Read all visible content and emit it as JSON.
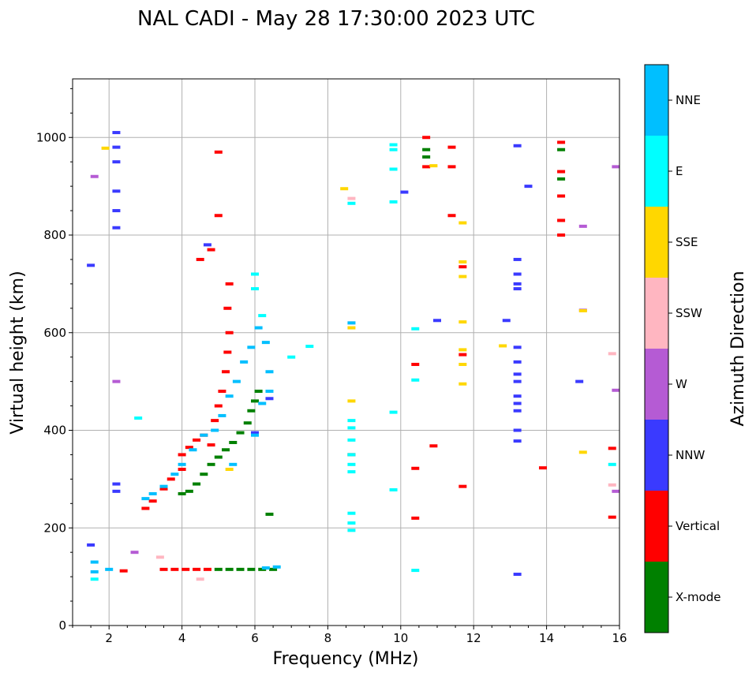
{
  "chart_data": {
    "type": "scatter",
    "title": "NAL CADI - May 28 17:30:00 2023 UTC",
    "xlabel": "Frequency (MHz)",
    "ylabel": "Virtual height (km)",
    "xlim": [
      1,
      16
    ],
    "ylim": [
      0,
      1120
    ],
    "x_ticks": [
      2,
      4,
      6,
      8,
      10,
      12,
      14,
      16
    ],
    "y_ticks": [
      0,
      200,
      400,
      600,
      800,
      1000
    ],
    "x_tick_labels": [
      "2",
      "4",
      "6",
      "8",
      "10",
      "12",
      "14",
      "16"
    ],
    "y_tick_labels": [
      "0",
      "200",
      "400",
      "600",
      "800",
      "1000"
    ],
    "grid": true,
    "colorbar": {
      "title": "Azimuth Direction",
      "classes": [
        {
          "label": "X-mode",
          "color": "#008000"
        },
        {
          "label": "Vertical",
          "color": "#ff0000"
        },
        {
          "label": "NNW",
          "color": "#3a3aff"
        },
        {
          "label": "W",
          "color": "#b55bd4"
        },
        {
          "label": "SSW",
          "color": "#ffb6c1"
        },
        {
          "label": "SSE",
          "color": "#ffd700"
        },
        {
          "label": "E",
          "color": "#00ffff"
        },
        {
          "label": "NNE",
          "color": "#00bfff"
        }
      ]
    },
    "series": [
      {
        "name": "X-mode",
        "points": [
          [
            4.0,
            270
          ],
          [
            4.2,
            275
          ],
          [
            4.4,
            290
          ],
          [
            4.6,
            310
          ],
          [
            4.8,
            330
          ],
          [
            5.0,
            345
          ],
          [
            5.2,
            360
          ],
          [
            5.4,
            375
          ],
          [
            5.6,
            395
          ],
          [
            5.8,
            415
          ],
          [
            5.9,
            440
          ],
          [
            6.0,
            460
          ],
          [
            6.1,
            480
          ],
          [
            5.0,
            115
          ],
          [
            5.3,
            115
          ],
          [
            5.6,
            115
          ],
          [
            5.9,
            115
          ],
          [
            6.2,
            115
          ],
          [
            6.5,
            115
          ],
          [
            10.7,
            960
          ],
          [
            10.7,
            975
          ],
          [
            14.4,
            975
          ],
          [
            14.4,
            915
          ],
          [
            8.65,
            350
          ],
          [
            6.4,
            228
          ]
        ]
      },
      {
        "name": "Vertical",
        "points": [
          [
            3.0,
            240
          ],
          [
            3.2,
            255
          ],
          [
            3.5,
            280
          ],
          [
            3.7,
            300
          ],
          [
            4.0,
            320
          ],
          [
            4.0,
            350
          ],
          [
            4.2,
            365
          ],
          [
            4.4,
            380
          ],
          [
            4.6,
            390
          ],
          [
            4.8,
            370
          ],
          [
            4.9,
            420
          ],
          [
            5.0,
            450
          ],
          [
            5.1,
            480
          ],
          [
            5.2,
            520
          ],
          [
            5.25,
            560
          ],
          [
            5.3,
            600
          ],
          [
            5.25,
            650
          ],
          [
            5.3,
            700
          ],
          [
            4.8,
            770
          ],
          [
            4.5,
            750
          ],
          [
            5.0,
            840
          ],
          [
            3.5,
            115
          ],
          [
            3.8,
            115
          ],
          [
            4.1,
            115
          ],
          [
            4.4,
            115
          ],
          [
            4.7,
            115
          ],
          [
            2.4,
            112
          ],
          [
            10.7,
            1000
          ],
          [
            10.7,
            940
          ],
          [
            11.4,
            980
          ],
          [
            11.4,
            940
          ],
          [
            11.4,
            840
          ],
          [
            14.4,
            990
          ],
          [
            14.4,
            930
          ],
          [
            14.4,
            880
          ],
          [
            14.4,
            830
          ],
          [
            14.4,
            800
          ],
          [
            10.4,
            535
          ],
          [
            10.4,
            322
          ],
          [
            10.4,
            220
          ],
          [
            10.9,
            368
          ],
          [
            11.7,
            735
          ],
          [
            11.7,
            555
          ],
          [
            11.7,
            285
          ],
          [
            13.9,
            323
          ],
          [
            15.8,
            363
          ],
          [
            15.8,
            222
          ],
          [
            8.65,
            350
          ],
          [
            5.0,
            970
          ]
        ]
      },
      {
        "name": "NNW",
        "points": [
          [
            2.2,
            1010
          ],
          [
            2.2,
            980
          ],
          [
            2.2,
            950
          ],
          [
            2.2,
            890
          ],
          [
            2.2,
            850
          ],
          [
            2.2,
            815
          ],
          [
            2.2,
            290
          ],
          [
            2.2,
            275
          ],
          [
            4.7,
            780
          ],
          [
            10.1,
            888
          ],
          [
            11.0,
            625
          ],
          [
            13.2,
            983
          ],
          [
            13.2,
            750
          ],
          [
            13.2,
            720
          ],
          [
            13.2,
            700
          ],
          [
            13.2,
            690
          ],
          [
            13.2,
            570
          ],
          [
            13.2,
            540
          ],
          [
            13.2,
            515
          ],
          [
            13.2,
            500
          ],
          [
            13.2,
            470
          ],
          [
            13.2,
            455
          ],
          [
            13.2,
            440
          ],
          [
            13.2,
            400
          ],
          [
            13.2,
            378
          ],
          [
            13.2,
            105
          ],
          [
            13.5,
            900
          ],
          [
            12.9,
            625
          ],
          [
            14.9,
            500
          ],
          [
            1.5,
            738
          ],
          [
            1.5,
            165
          ],
          [
            6.0,
            395
          ],
          [
            6.4,
            465
          ]
        ]
      },
      {
        "name": "W",
        "points": [
          [
            1.6,
            920
          ],
          [
            2.2,
            500
          ],
          [
            15.9,
            940
          ],
          [
            15.9,
            482
          ],
          [
            15.9,
            275
          ],
          [
            15.0,
            818
          ],
          [
            15.0,
            646
          ],
          [
            2.7,
            150
          ]
        ]
      },
      {
        "name": "SSW",
        "points": [
          [
            8.65,
            875
          ],
          [
            8.65,
            620
          ],
          [
            15.8,
            288
          ],
          [
            15.8,
            557
          ],
          [
            4.5,
            95
          ],
          [
            3.4,
            140
          ]
        ]
      },
      {
        "name": "SSE",
        "points": [
          [
            8.45,
            895
          ],
          [
            8.65,
            610
          ],
          [
            8.65,
            460
          ],
          [
            10.9,
            942
          ],
          [
            11.7,
            825
          ],
          [
            11.7,
            745
          ],
          [
            11.7,
            715
          ],
          [
            11.7,
            622
          ],
          [
            11.7,
            565
          ],
          [
            11.7,
            535
          ],
          [
            11.7,
            495
          ],
          [
            12.8,
            573
          ],
          [
            15.0,
            355
          ],
          [
            15.0,
            645
          ],
          [
            1.9,
            978
          ],
          [
            5.3,
            320
          ]
        ]
      },
      {
        "name": "E",
        "points": [
          [
            8.65,
            420
          ],
          [
            8.65,
            405
          ],
          [
            8.65,
            380
          ],
          [
            8.65,
            350
          ],
          [
            8.65,
            330
          ],
          [
            8.65,
            315
          ],
          [
            8.65,
            230
          ],
          [
            8.65,
            210
          ],
          [
            8.65,
            195
          ],
          [
            8.65,
            865
          ],
          [
            9.8,
            985
          ],
          [
            9.8,
            975
          ],
          [
            9.8,
            935
          ],
          [
            9.8,
            868
          ],
          [
            9.8,
            437
          ],
          [
            9.8,
            278
          ],
          [
            10.4,
            608
          ],
          [
            10.4,
            503
          ],
          [
            10.4,
            113
          ],
          [
            7.5,
            572
          ],
          [
            7.0,
            550
          ],
          [
            6.0,
            720
          ],
          [
            6.0,
            690
          ],
          [
            6.2,
            635
          ],
          [
            1.6,
            95
          ],
          [
            15.8,
            330
          ],
          [
            2.8,
            425
          ]
        ]
      },
      {
        "name": "NNE",
        "points": [
          [
            1.6,
            130
          ],
          [
            1.6,
            110
          ],
          [
            2.0,
            115
          ],
          [
            3.0,
            260
          ],
          [
            3.2,
            270
          ],
          [
            3.5,
            285
          ],
          [
            3.8,
            310
          ],
          [
            4.0,
            330
          ],
          [
            4.3,
            360
          ],
          [
            4.6,
            390
          ],
          [
            4.9,
            400
          ],
          [
            5.1,
            430
          ],
          [
            5.3,
            470
          ],
          [
            5.5,
            500
          ],
          [
            5.7,
            540
          ],
          [
            5.9,
            570
          ],
          [
            6.1,
            610
          ],
          [
            6.3,
            580
          ],
          [
            6.4,
            480
          ],
          [
            6.4,
            520
          ],
          [
            6.2,
            455
          ],
          [
            6.0,
            390
          ],
          [
            5.4,
            330
          ],
          [
            6.3,
            118
          ],
          [
            6.6,
            120
          ],
          [
            8.65,
            620
          ]
        ]
      }
    ]
  }
}
